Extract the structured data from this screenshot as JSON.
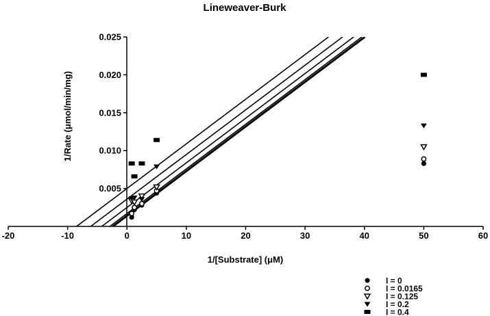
{
  "chart_data": {
    "type": "scatter",
    "title": "Lineweaver-Burk",
    "xlabel": "1/[Substrate] (μM)",
    "ylabel": "1/Rate (μmol/min/mg)",
    "xlim": [
      -20,
      60
    ],
    "ylim": [
      0,
      0.025
    ],
    "x_ticks": [
      -20,
      -10,
      0,
      10,
      20,
      30,
      40,
      50,
      60
    ],
    "y_ticks": [
      0.005,
      0.01,
      0.015,
      0.02,
      0.025
    ],
    "x_tick_labels": [
      "-20",
      "-10",
      "0",
      "10",
      "20",
      "30",
      "40",
      "50",
      "60"
    ],
    "y_tick_labels": [
      "0.005",
      "0.010",
      "0.015",
      "0.020",
      "0.025"
    ],
    "grid": false,
    "legend_position": "bottom-right",
    "series": [
      {
        "name": "I = 0",
        "marker": "circle",
        "points": [
          [
            0.8,
            0.0012
          ],
          [
            1.25,
            0.0022
          ],
          [
            2.5,
            0.0028
          ],
          [
            5.0,
            0.0044
          ],
          [
            50,
            0.0083
          ]
        ],
        "fit": {
          "slope": 0.000589,
          "intercept": 0.0014
        }
      },
      {
        "name": "I = 0.0165",
        "marker": "open-circle",
        "points": [
          [
            0.8,
            0.0017
          ],
          [
            1.25,
            0.0025
          ],
          [
            2.5,
            0.003
          ],
          [
            5.0,
            0.0047
          ],
          [
            50,
            0.0089
          ]
        ],
        "fit": {
          "slope": 0.000589,
          "intercept": 0.0017
        }
      },
      {
        "name": "I = 0.125",
        "marker": "triangle-down",
        "points": [
          [
            0.8,
            0.0034
          ],
          [
            1.25,
            0.0032
          ],
          [
            2.5,
            0.004
          ],
          [
            5.0,
            0.0052
          ],
          [
            50,
            0.0105
          ]
        ],
        "fit": {
          "slope": 0.000589,
          "intercept": 0.0025
        }
      },
      {
        "name": "I = 0.2",
        "marker": "triangle-down-filled",
        "points": [
          [
            0.8,
            0.0037
          ],
          [
            1.25,
            0.0038
          ],
          [
            2.5,
            0.0036
          ],
          [
            5.0,
            0.0079
          ],
          [
            50,
            0.0133
          ]
        ],
        "fit": {
          "slope": 0.000589,
          "intercept": 0.0036
        }
      },
      {
        "name": "I = 0.4",
        "marker": "square",
        "points": [
          [
            0.8,
            0.0083
          ],
          [
            1.25,
            0.0066
          ],
          [
            2.5,
            0.0083
          ],
          [
            5.0,
            0.0114
          ],
          [
            50,
            0.02
          ]
        ],
        "fit": {
          "slope": 0.000589,
          "intercept": 0.005
        }
      }
    ]
  }
}
